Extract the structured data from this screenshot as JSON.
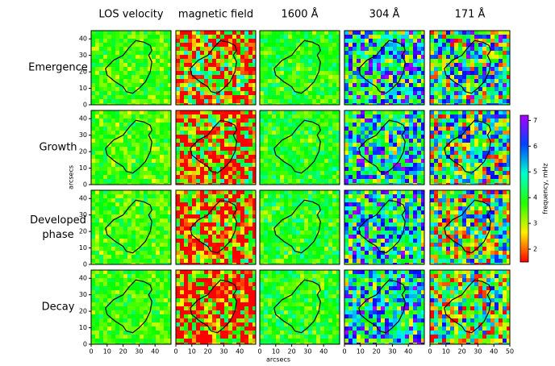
{
  "figure": {
    "columns": [
      "LOS velocity",
      "magnetic field",
      "1600 Å",
      "304 Å",
      "171 Å"
    ],
    "rows": [
      "Emergence",
      "Growth",
      "Developed\nphase",
      "Decay"
    ],
    "xlim": [
      0,
      50
    ],
    "ylim": [
      0,
      45
    ],
    "yticks": [
      0,
      10,
      20,
      30,
      40
    ],
    "panel_xticks": [
      [
        0,
        10,
        20,
        30,
        40
      ],
      [
        0,
        10,
        20,
        30,
        40
      ],
      [
        0,
        10,
        20,
        30,
        40
      ],
      [
        0,
        10,
        20,
        30,
        40
      ],
      [
        0,
        10,
        20,
        30,
        40,
        50
      ]
    ],
    "xlabel": "arcsecs",
    "ylabel": "arcsecs",
    "colorbar": {
      "label": "frequency, mHz",
      "lim": [
        1.5,
        7.2
      ],
      "ticks": [
        2,
        3,
        4,
        5,
        6,
        7
      ]
    }
  }
}
